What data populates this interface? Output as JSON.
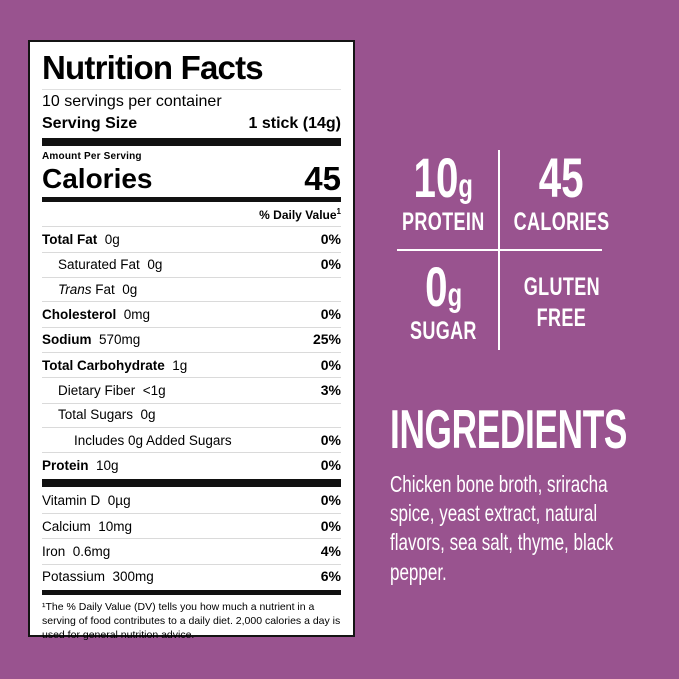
{
  "colors": {
    "background": "#99538f",
    "label_background": "#ffffff",
    "label_border": "#141414",
    "text_dark": "#000000",
    "text_light": "#ffffff"
  },
  "nutrition_label": {
    "title": "Nutrition Facts",
    "servings_per_container": "10 servings per container",
    "serving_size_label": "Serving Size",
    "serving_size_value": "1 stick (14g)",
    "amount_per_serving": "Amount Per Serving",
    "calories_label": "Calories",
    "calories_value": "45",
    "daily_value_header": "% Daily Value",
    "daily_value_superscript": "1",
    "rows": [
      {
        "bold": true,
        "indent": 0,
        "name": "Total Fat",
        "amount": "0g",
        "dv": "0%"
      },
      {
        "bold": false,
        "indent": 1,
        "name": "Saturated Fat",
        "amount": "0g",
        "dv": "0%"
      },
      {
        "bold": false,
        "indent": 1,
        "italic": "Trans",
        "name": "Fat",
        "amount": "0g",
        "dv": ""
      },
      {
        "bold": true,
        "indent": 0,
        "name": "Cholesterol",
        "amount": "0mg",
        "dv": "0%"
      },
      {
        "bold": true,
        "indent": 0,
        "name": "Sodium",
        "amount": "570mg",
        "dv": "25%"
      },
      {
        "bold": true,
        "indent": 0,
        "name": "Total Carbohydrate",
        "amount": "1g",
        "dv": "0%"
      },
      {
        "bold": false,
        "indent": 1,
        "name": "Dietary Fiber",
        "amount": "<1g",
        "dv": "3%"
      },
      {
        "bold": false,
        "indent": 1,
        "name": "Total Sugars",
        "amount": "0g",
        "dv": ""
      },
      {
        "bold": false,
        "indent": 2,
        "name": "Includes 0g Added Sugars",
        "amount": "",
        "dv": "0%"
      },
      {
        "bold": true,
        "indent": 0,
        "name": "Protein",
        "amount": "10g",
        "dv": "0%"
      }
    ],
    "vitamin_rows": [
      {
        "bold": false,
        "indent": 0,
        "name": "Vitamin D",
        "amount": "0µg",
        "dv": "0%"
      },
      {
        "bold": false,
        "indent": 0,
        "name": "Calcium",
        "amount": "10mg",
        "dv": "0%"
      },
      {
        "bold": false,
        "indent": 0,
        "name": "Iron",
        "amount": "0.6mg",
        "dv": "4%"
      },
      {
        "bold": false,
        "indent": 0,
        "name": "Potassium",
        "amount": "300mg",
        "dv": "6%"
      }
    ],
    "footnote": "¹The % Daily Value (DV) tells you how much a nutrient in a serving of food contributes to a daily diet. 2,000 calories a day is used for general nutrition advice."
  },
  "highlights": {
    "stats": [
      {
        "value": "10",
        "unit": "g",
        "label": "PROTEIN"
      },
      {
        "value": "45",
        "unit": "",
        "label": "CALORIES"
      },
      {
        "value": "0",
        "unit": "g",
        "label": "SUGAR"
      },
      {
        "lines": [
          "GLUTEN",
          "FREE"
        ]
      }
    ]
  },
  "ingredients": {
    "heading": "INGREDIENTS",
    "text": "Chicken bone broth, sriracha spice, yeast extract, natural flavors, sea salt, thyme, black pepper.",
    "lines": [
      "Chicken bone broth, sriracha",
      "spice, yeast extract, natural",
      "flavors, sea salt, thyme, black",
      "pepper."
    ]
  }
}
